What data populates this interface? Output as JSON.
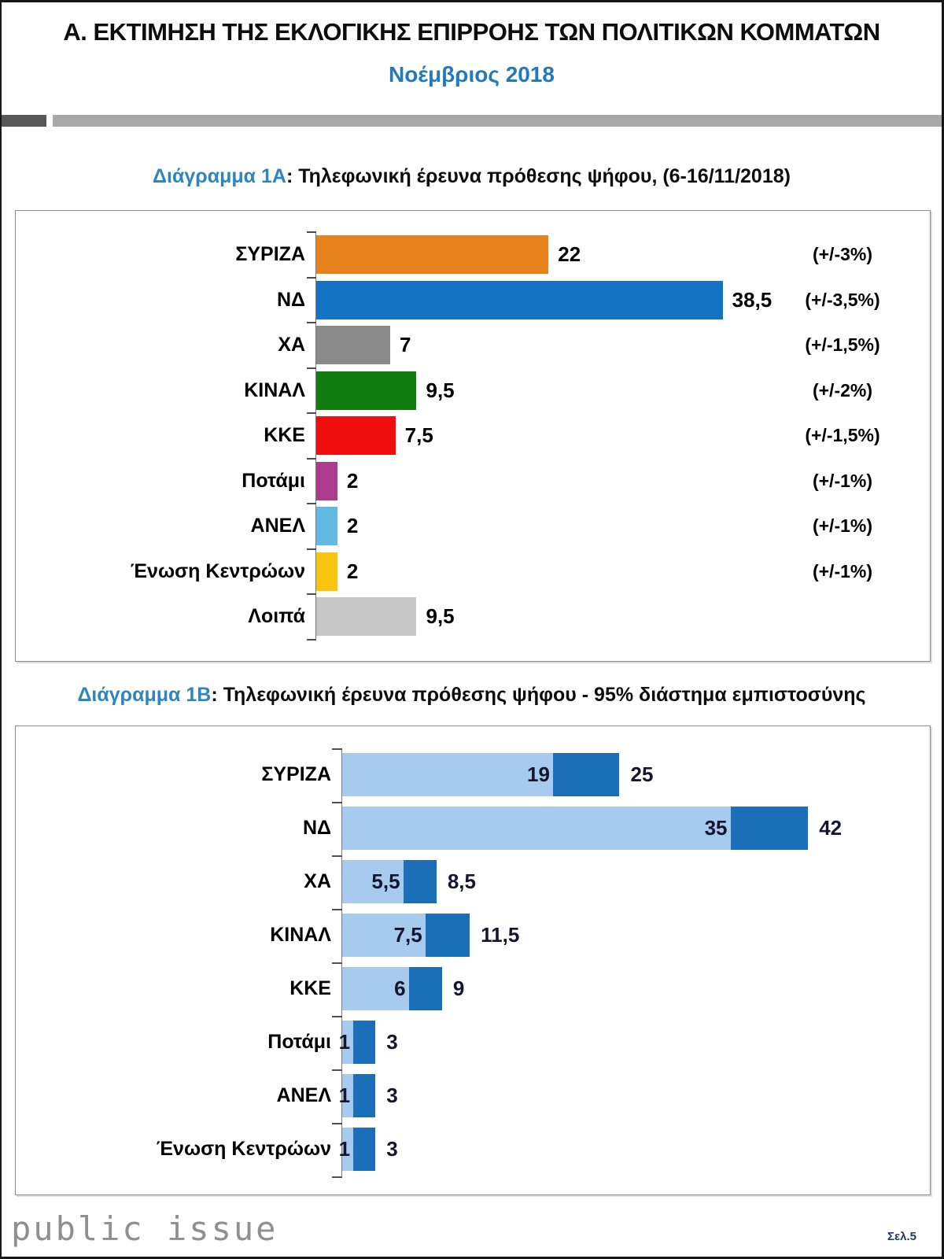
{
  "header": {
    "title": "Α. ΕΚΤΙΜΗΣΗ ΤΗΣ ΕΚΛΟΓΙΚΗΣ ΕΠΙΡΡΟΗΣ ΤΩΝ ΠΟΛΙΤΙΚΩΝ ΚΟΜΜΑΤΩΝ",
    "subtitle": "Νοέμβριος 2018"
  },
  "footer": {
    "logo": "public issue",
    "page_label": "Σελ.5"
  },
  "chart_data": [
    {
      "type": "bar",
      "orientation": "horizontal",
      "title_label": "Διάγραμμα 1Α",
      "title_rest": ": Τηλεφωνική έρευνα πρόθεσης ψήφου, (6-16/11/2018)",
      "title": "Διάγραμμα 1Α: Τηλεφωνική έρευνα πρόθεσης ψήφου, (6-16/11/2018)",
      "categories": [
        "ΣΥΡΙΖΑ",
        "ΝΔ",
        "ΧΑ",
        "ΚΙΝΑΛ",
        "ΚΚΕ",
        "Ποτάμι",
        "ΑΝΕΛ",
        "Ένωση Κεντρώων",
        "Λοιπά"
      ],
      "values": [
        22,
        38.5,
        7,
        9.5,
        7.5,
        2,
        2,
        2,
        9.5
      ],
      "value_labels": [
        "22",
        "38,5",
        "7",
        "9,5",
        "7,5",
        "2",
        "2",
        "2",
        "9,5"
      ],
      "margins_of_error": [
        "(+/-3%)",
        "(+/-3,5%)",
        "(+/-1,5%)",
        "(+/-2%)",
        "(+/-1,5%)",
        "(+/-1%)",
        "(+/-1%)",
        "(+/-1%)",
        ""
      ],
      "colors": [
        "#E8821D",
        "#1473C2",
        "#8A8A8A",
        "#117D11",
        "#F10E0E",
        "#AB3B8D",
        "#64B9E2",
        "#F7C40F",
        "#C7C7C7"
      ],
      "xlim": [
        0,
        42
      ],
      "grid": false,
      "legend": false,
      "unit": "%"
    },
    {
      "type": "bar",
      "subtype": "range",
      "orientation": "horizontal",
      "title_label": "Διάγραμμα 1Β",
      "title_rest": ": Τηλεφωνική έρευνα πρόθεσης ψήφου - 95% διάστημα εμπιστοσύνης",
      "title": "Διάγραμμα 1Β: Τηλεφωνική έρευνα πρόθεσης ψήφου - 95% διάστημα εμπιστοσύνης",
      "categories": [
        "ΣΥΡΙΖΑ",
        "ΝΔ",
        "ΧΑ",
        "ΚΙΝΑΛ",
        "ΚΚΕ",
        "Ποτάμι",
        "ΑΝΕΛ",
        "Ένωση Κεντρώων"
      ],
      "series": [
        {
          "name": "lower-bound",
          "values": [
            19,
            35,
            5.5,
            7.5,
            6,
            1,
            1,
            1
          ]
        },
        {
          "name": "upper-bound",
          "values": [
            25,
            42,
            8.5,
            11.5,
            9,
            3,
            3,
            3
          ]
        }
      ],
      "low_labels": [
        "19",
        "35",
        "5,5",
        "7,5",
        "6",
        "1",
        "1",
        "1"
      ],
      "high_labels": [
        "25",
        "42",
        "8,5",
        "11,5",
        "9",
        "3",
        "3",
        "3"
      ],
      "colors": {
        "lower": "#A7CBEF",
        "upper": "#1A6FB8"
      },
      "xlim": [
        0,
        45
      ],
      "grid": false,
      "legend": false,
      "unit": "%"
    }
  ]
}
